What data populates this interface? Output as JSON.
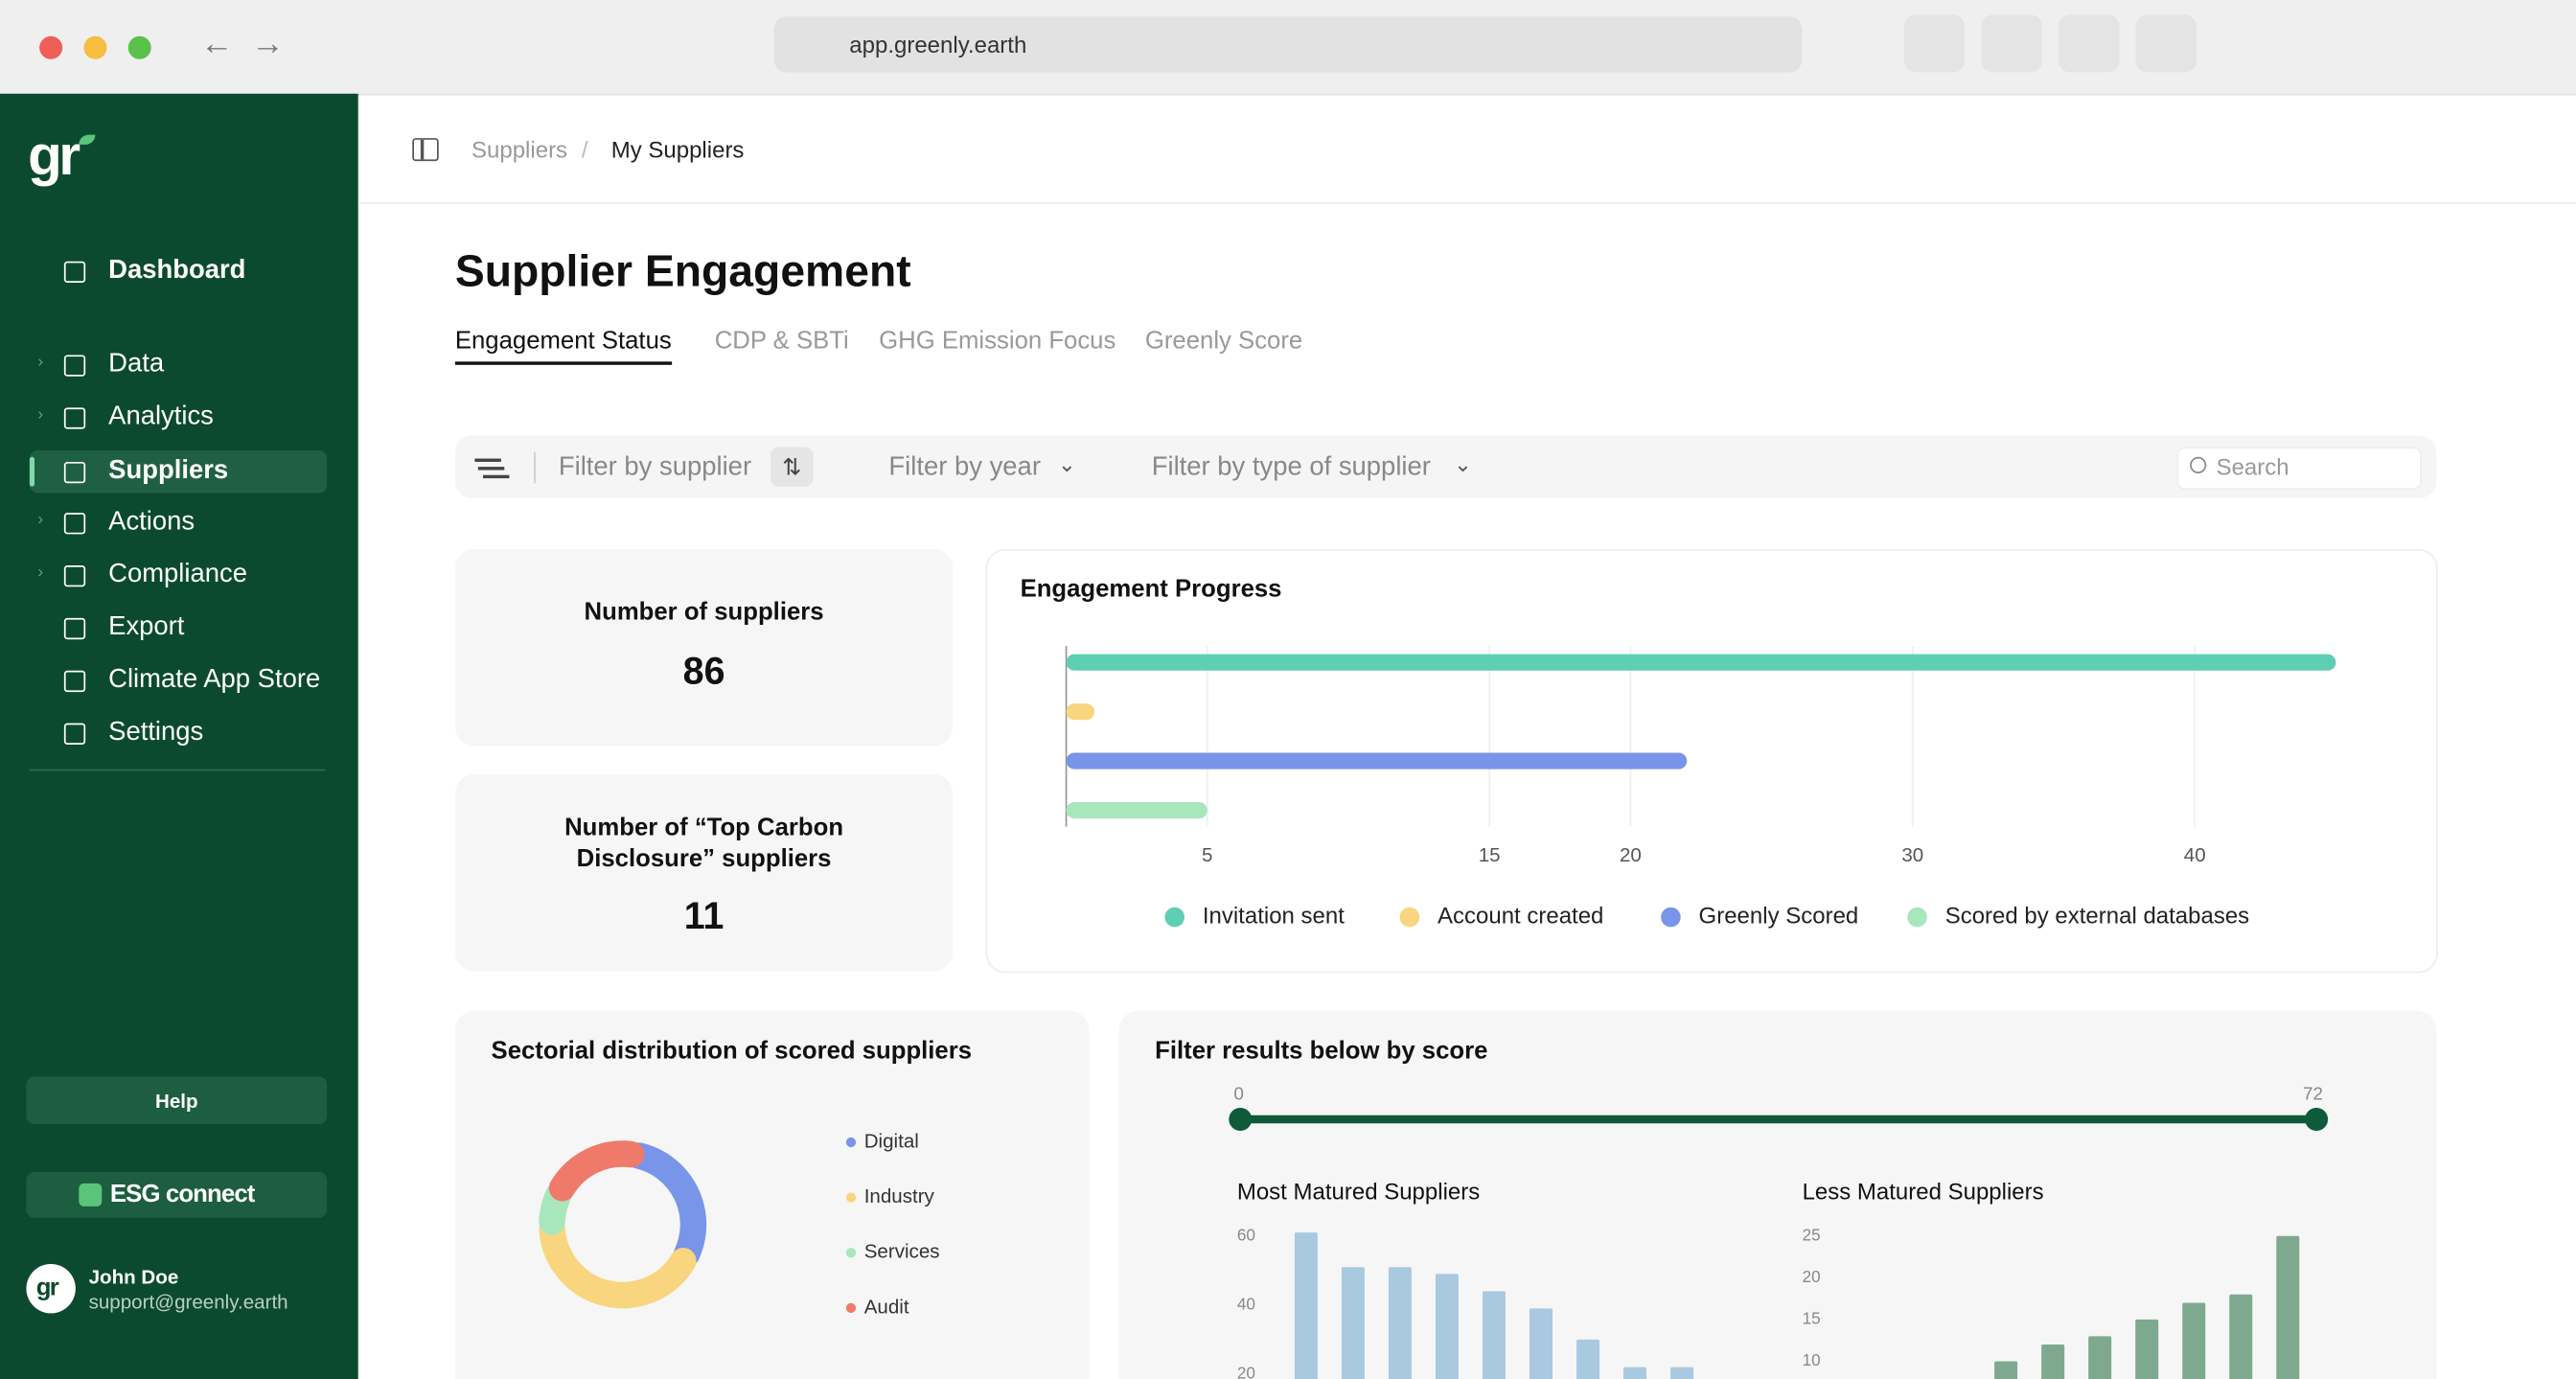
{
  "browser": {
    "url": "app.greenly.earth"
  },
  "sidebar": {
    "logo": "gr",
    "nav": [
      {
        "label": "Dashboard"
      },
      {
        "label": "Data"
      },
      {
        "label": "Analytics"
      },
      {
        "label": "Suppliers",
        "active": true
      },
      {
        "label": "Actions"
      },
      {
        "label": "Compliance"
      },
      {
        "label": "Export"
      },
      {
        "label": "Climate App Store"
      },
      {
        "label": "Settings"
      }
    ],
    "help": "Help",
    "partner": "ESG connect",
    "user": {
      "name": "John Doe",
      "email": "support@greenly.earth"
    }
  },
  "breadcrumb": [
    "Suppliers",
    "My Suppliers"
  ],
  "title": "Supplier Engagement",
  "tabs": [
    {
      "label": "Engagement Status",
      "active": true
    },
    {
      "label": "CDP & SBTi"
    },
    {
      "label": "GHG Emission Focus"
    },
    {
      "label": "Greenly Score"
    }
  ],
  "filters": [
    "Filter by supplier",
    "Filter by year",
    "Filter by type of supplier"
  ],
  "search": "Search",
  "cards": [
    {
      "label": "Number of suppliers",
      "value": 86
    },
    {
      "label": "Number of “Top Carbon Disclosure” suppliers",
      "value": 11
    }
  ],
  "score_filter": {
    "title": "Filter results below by score",
    "min": 0,
    "max": 72
  },
  "chart_data": [
    {
      "type": "bar",
      "orientation": "horizontal",
      "title": "Engagement Progress",
      "series": [
        {
          "name": "Invitation sent",
          "color": "#5ecfb4",
          "values": [
            45
          ]
        },
        {
          "name": "Account created",
          "color": "#f8d57e",
          "values": [
            1
          ]
        },
        {
          "name": "Greenly Scored",
          "color": "#7895ea",
          "values": [
            22
          ]
        },
        {
          "name": "Scored by external databases",
          "color": "#a8e6bc",
          "values": [
            5
          ]
        }
      ],
      "xlim": [
        0,
        46
      ],
      "xticks": [
        5,
        15,
        20,
        30,
        40
      ],
      "grid": true,
      "legend": "bottom"
    },
    {
      "type": "pie",
      "donut": true,
      "title": "Sectorial distribution of scored suppliers",
      "categories": [
        "Digital",
        "Industry",
        "Services",
        "Audit"
      ],
      "values": [
        30,
        42,
        8,
        20
      ],
      "colors": [
        "#7895ea",
        "#f8d57e",
        "#a8e6bc",
        "#f07a6a"
      ],
      "legend": "right"
    },
    {
      "type": "bar",
      "title": "Most Matured Suppliers",
      "categories": [
        null,
        null,
        null,
        null,
        null,
        null,
        null,
        null,
        null
      ],
      "values": [
        61,
        51,
        51,
        49,
        44,
        39,
        30,
        22,
        22
      ],
      "color": "#a9c9e0",
      "ylim": [
        0,
        60
      ],
      "yticks": [
        20,
        40,
        60
      ]
    },
    {
      "type": "bar",
      "title": "Less Matured Suppliers",
      "categories": [
        null,
        null,
        null,
        null,
        null,
        null,
        null
      ],
      "values": [
        10,
        12,
        13,
        15,
        17,
        18,
        25
      ],
      "color": "#7fa98f",
      "ylim": [
        0,
        25
      ],
      "yticks": [
        10,
        15,
        20,
        25
      ]
    }
  ]
}
